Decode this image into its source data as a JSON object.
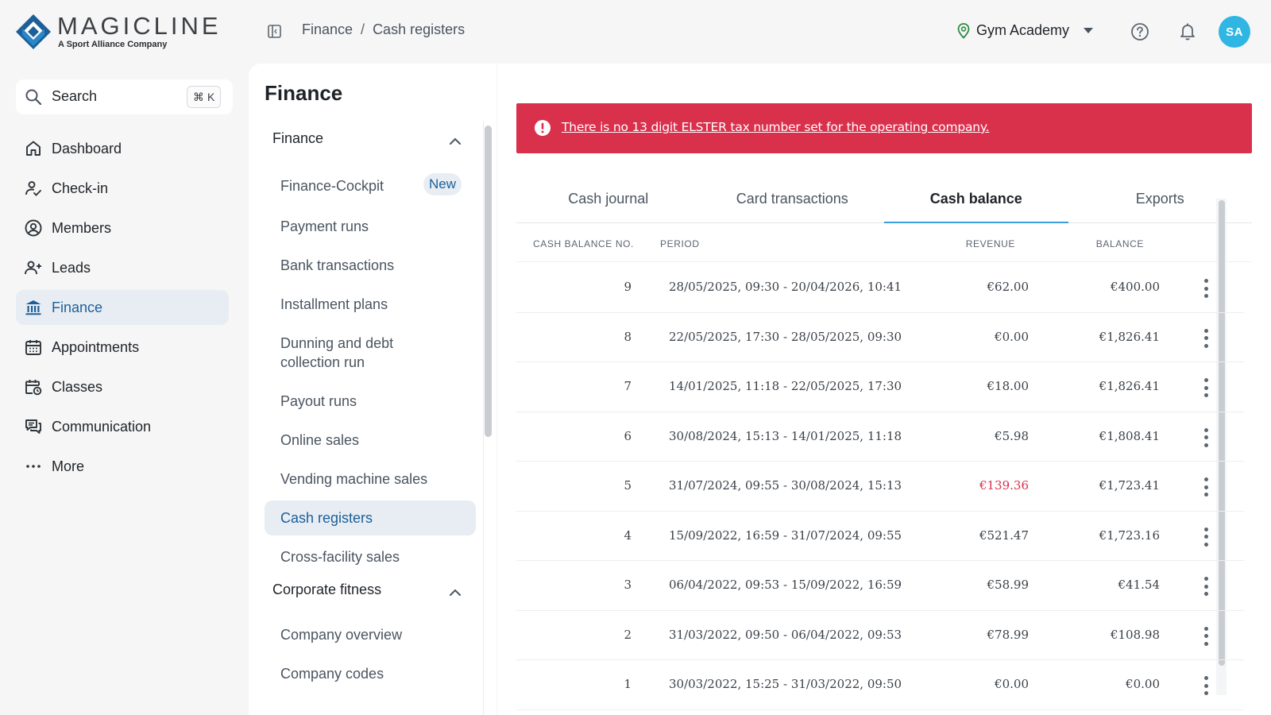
{
  "brand": {
    "name": "MAGICLINE",
    "tagline": "A Sport Alliance Company"
  },
  "breadcrumb": {
    "parent": "Finance",
    "separator": "/",
    "current": "Cash registers"
  },
  "location": {
    "name": "Gym Academy"
  },
  "user": {
    "initials": "SA"
  },
  "search": {
    "label": "Search",
    "shortcut_symbol": "⌘",
    "shortcut_key": "K"
  },
  "nav": {
    "items": [
      {
        "label": "Dashboard",
        "icon": "home-icon"
      },
      {
        "label": "Check-in",
        "icon": "check-in-icon"
      },
      {
        "label": "Members",
        "icon": "members-icon"
      },
      {
        "label": "Leads",
        "icon": "leads-icon"
      },
      {
        "label": "Finance",
        "icon": "bank-icon",
        "active": true
      },
      {
        "label": "Appointments",
        "icon": "calendar-icon"
      },
      {
        "label": "Classes",
        "icon": "classes-icon"
      },
      {
        "label": "Communication",
        "icon": "chat-icon"
      },
      {
        "label": "More",
        "icon": "more-icon"
      }
    ]
  },
  "subnav": {
    "title": "Finance",
    "sections": [
      {
        "label": "Finance",
        "items": [
          {
            "label": "Finance-Cockpit",
            "badge": "New"
          },
          {
            "label": "Payment runs"
          },
          {
            "label": "Bank transactions"
          },
          {
            "label": "Installment plans"
          },
          {
            "label": "Dunning and debt collection run"
          },
          {
            "label": "Payout runs"
          },
          {
            "label": "Online sales"
          },
          {
            "label": "Vending machine sales"
          },
          {
            "label": "Cash registers",
            "active": true
          },
          {
            "label": "Cross-facility sales"
          }
        ]
      },
      {
        "label": "Corporate fitness",
        "items": [
          {
            "label": "Company overview"
          },
          {
            "label": "Company codes"
          }
        ]
      }
    ]
  },
  "alert": {
    "message": "There is no 13 digit ELSTER tax number set for the operating company.",
    "color": "#d9304c"
  },
  "tabs": [
    {
      "label": "Cash journal"
    },
    {
      "label": "Card transactions"
    },
    {
      "label": "Cash balance",
      "active": true
    },
    {
      "label": "Exports"
    }
  ],
  "table": {
    "columns": {
      "no": "CASH BALANCE NO.",
      "period": "PERIOD",
      "revenue": "REVENUE",
      "balance": "BALANCE"
    },
    "rows": [
      {
        "no": "9",
        "period": "28/05/2025, 09:30 - 20/04/2026, 10:41",
        "revenue": "€62.00",
        "balance": "€400.00"
      },
      {
        "no": "8",
        "period": "22/05/2025, 17:30 - 28/05/2025, 09:30",
        "revenue": "€0.00",
        "balance": "€1,826.41"
      },
      {
        "no": "7",
        "period": "14/01/2025, 11:18 - 22/05/2025, 17:30",
        "revenue": "€18.00",
        "balance": "€1,826.41"
      },
      {
        "no": "6",
        "period": "30/08/2024, 15:13 - 14/01/2025, 11:18",
        "revenue": "€5.98",
        "balance": "€1,808.41"
      },
      {
        "no": "5",
        "period": "31/07/2024, 09:55 - 30/08/2024, 15:13",
        "revenue": "€139.36",
        "balance": "€1,723.41",
        "negative": true
      },
      {
        "no": "4",
        "period": "15/09/2022, 16:59 - 31/07/2024, 09:55",
        "revenue": "€521.47",
        "balance": "€1,723.16"
      },
      {
        "no": "3",
        "period": "06/04/2022, 09:53 - 15/09/2022, 16:59",
        "revenue": "€58.99",
        "balance": "€41.54"
      },
      {
        "no": "2",
        "period": "31/03/2022, 09:50 - 06/04/2022, 09:53",
        "revenue": "€78.99",
        "balance": "€108.98"
      },
      {
        "no": "1",
        "period": "30/03/2022, 15:25 - 31/03/2022, 09:50",
        "revenue": "€0.00",
        "balance": "€0.00"
      }
    ]
  },
  "colors": {
    "accent": "#1d5f99",
    "tab_underline": "#3a9fd8",
    "avatar": "#30b6e3",
    "negative": "#d9304c"
  }
}
